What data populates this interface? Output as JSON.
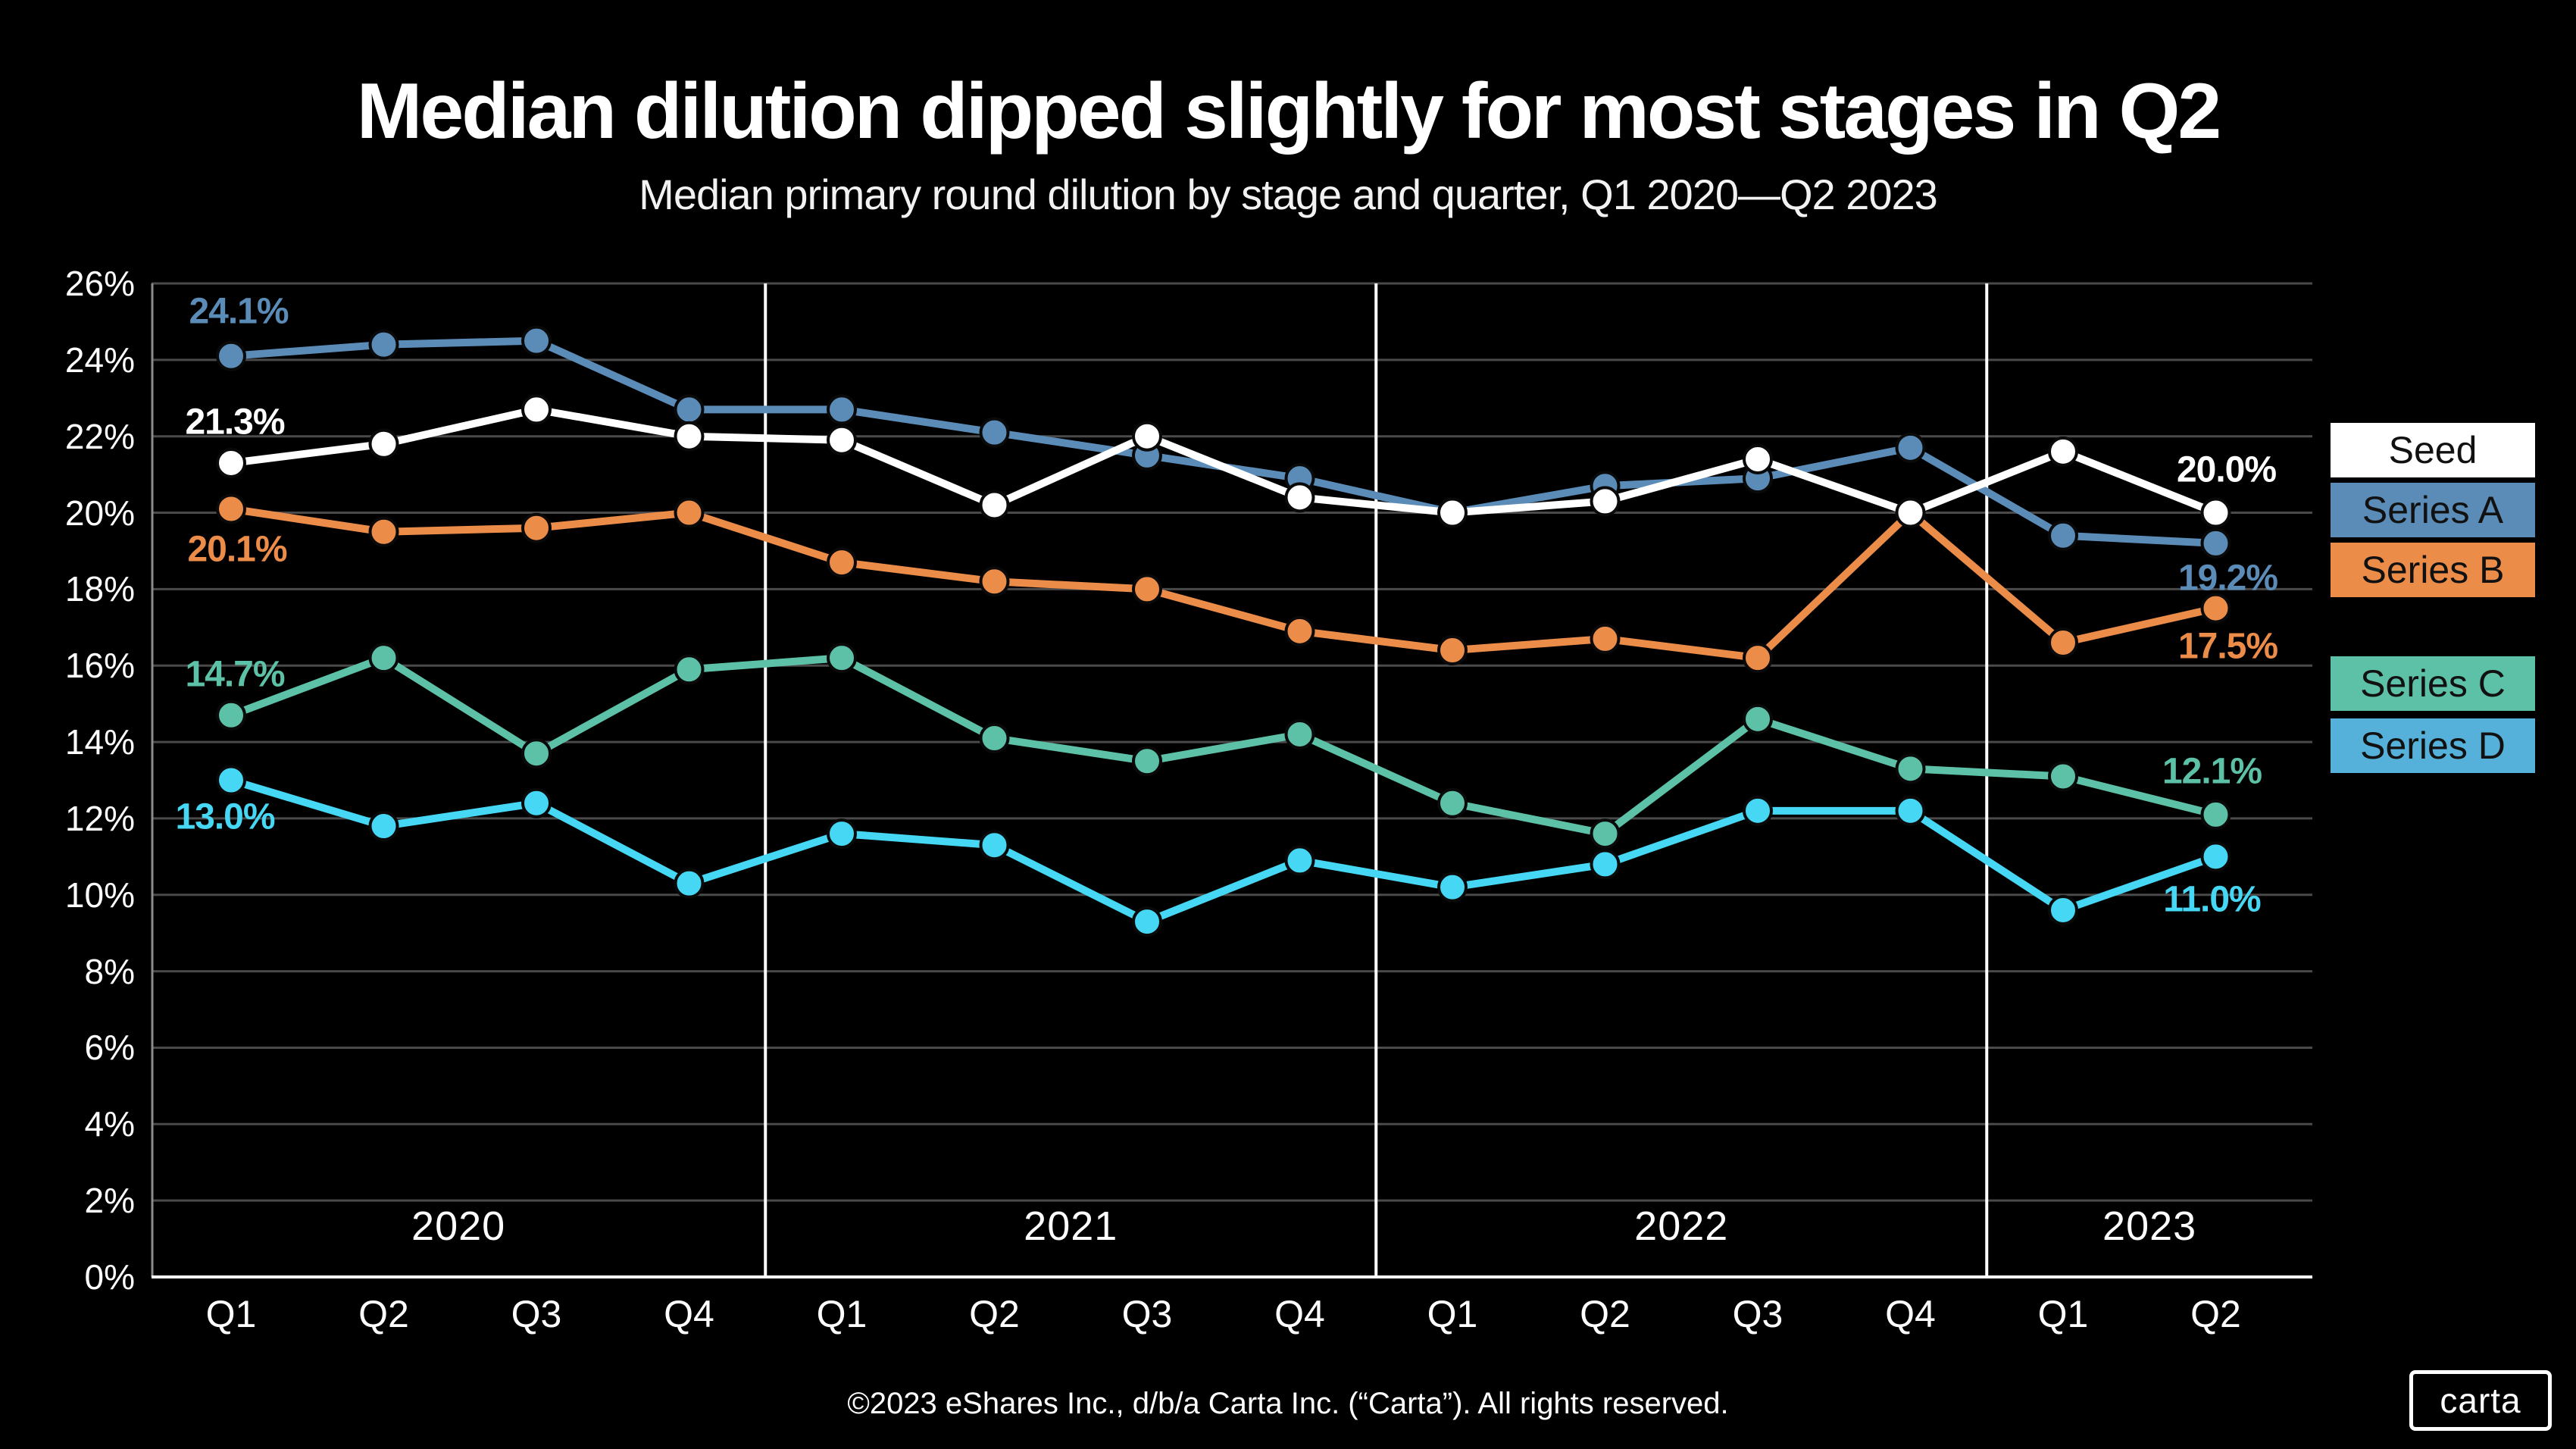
{
  "title": "Median dilution dipped slightly for most stages in Q2",
  "subtitle": "Median primary round dilution by stage and quarter, Q1 2020—Q2 2023",
  "footer": "©2023 eShares Inc., d/b/a Carta Inc. (“Carta”). All rights reserved.",
  "logo_text": "carta",
  "colors": {
    "background": "#000000",
    "grid": "#4a4a4a",
    "x_axis": "#ffffff",
    "y_axis": "#8a8a8a",
    "year_divider": "#ffffff",
    "marker_outline": "#0a0a0a",
    "legend_text": "#111111"
  },
  "chart_data": {
    "type": "line",
    "x": [
      "Q1",
      "Q2",
      "Q3",
      "Q4",
      "Q1",
      "Q2",
      "Q3",
      "Q4",
      "Q1",
      "Q2",
      "Q3",
      "Q4",
      "Q1",
      "Q2"
    ],
    "year_bands": [
      {
        "label": "2020",
        "quarters": 4
      },
      {
        "label": "2021",
        "quarters": 4
      },
      {
        "label": "2022",
        "quarters": 4
      },
      {
        "label": "2023",
        "quarters": 2
      }
    ],
    "yticks": [
      "0%",
      "2%",
      "4%",
      "6%",
      "8%",
      "10%",
      "12%",
      "14%",
      "16%",
      "18%",
      "20%",
      "22%",
      "24%",
      "26%"
    ],
    "ylim": [
      0,
      26
    ],
    "grid": true,
    "legend_position": "right",
    "series": [
      {
        "name": "Seed",
        "color": "#ffffff",
        "legend_bg": "#ffffff",
        "values": [
          21.3,
          21.8,
          22.7,
          22.0,
          21.9,
          20.2,
          22.0,
          20.4,
          20.0,
          20.3,
          21.4,
          20.0,
          21.6,
          20.0
        ],
        "start_label": "21.3%",
        "end_label": "20.0%"
      },
      {
        "name": "Series A",
        "color": "#5b8cb8",
        "legend_bg": "#5b8cb8",
        "values": [
          24.1,
          24.4,
          24.5,
          22.7,
          22.7,
          22.1,
          21.5,
          20.9,
          20.0,
          20.7,
          20.9,
          21.7,
          19.4,
          19.2
        ],
        "start_label": "24.1%",
        "end_label": "19.2%"
      },
      {
        "name": "Series B",
        "color": "#ec8c49",
        "legend_bg": "#ec8c49",
        "values": [
          20.1,
          19.5,
          19.6,
          20.0,
          18.7,
          18.2,
          18.0,
          16.9,
          16.4,
          16.7,
          16.2,
          20.0,
          16.6,
          17.5
        ],
        "start_label": "20.1%",
        "end_label": "17.5%"
      },
      {
        "name": "Series C",
        "color": "#5cc1a6",
        "legend_bg": "#5cc1a6",
        "values": [
          14.7,
          16.2,
          13.7,
          15.9,
          16.2,
          14.1,
          13.5,
          14.2,
          12.4,
          11.6,
          14.6,
          13.3,
          13.1,
          12.1
        ],
        "start_label": "14.7%",
        "end_label": "12.1%"
      },
      {
        "name": "Series D",
        "color": "#45d7f3",
        "legend_bg": "#55b1da",
        "values": [
          13.0,
          11.8,
          12.4,
          10.3,
          11.6,
          11.3,
          9.3,
          10.9,
          10.2,
          10.8,
          12.2,
          12.2,
          9.6,
          11.0
        ],
        "start_label": "13.0%",
        "end_label": "11.0%"
      }
    ]
  }
}
